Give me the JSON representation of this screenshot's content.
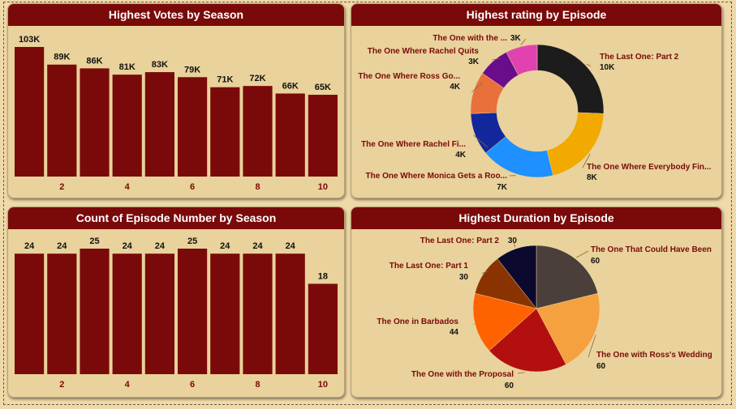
{
  "colors": {
    "bar": "#7a0a0a",
    "title_bg": "#7a0a0a",
    "card_bg": "#e9d29b",
    "page_bg": "#efd9a8",
    "label_dark": "#7a0a0a"
  },
  "chart_data": [
    {
      "id": "votes",
      "type": "bar",
      "title": "Highest Votes by Season",
      "categories": [
        1,
        2,
        3,
        4,
        5,
        6,
        7,
        8,
        9,
        10
      ],
      "tick_labels": [
        "",
        "2",
        "",
        "4",
        "",
        "6",
        "",
        "8",
        "",
        "10"
      ],
      "values": [
        103,
        89,
        86,
        81,
        83,
        79,
        71,
        72,
        66,
        65
      ],
      "value_labels": [
        "103K",
        "89K",
        "86K",
        "81K",
        "83K",
        "79K",
        "71K",
        "72K",
        "66K",
        "65K"
      ],
      "ylim": [
        0,
        103
      ]
    },
    {
      "id": "episodes",
      "type": "bar",
      "title": "Count of Episode Number by Season",
      "categories": [
        1,
        2,
        3,
        4,
        5,
        6,
        7,
        8,
        9,
        10
      ],
      "tick_labels": [
        "",
        "2",
        "",
        "4",
        "",
        "6",
        "",
        "8",
        "",
        "10"
      ],
      "values": [
        24,
        24,
        25,
        24,
        24,
        25,
        24,
        24,
        24,
        18
      ],
      "value_labels": [
        "24",
        "24",
        "25",
        "24",
        "24",
        "25",
        "24",
        "24",
        "24",
        "18"
      ],
      "ylim": [
        0,
        25
      ]
    },
    {
      "id": "rating",
      "type": "pie",
      "donut": true,
      "title": "Highest rating by Episode",
      "slices": [
        {
          "label": "The Last One: Part 2",
          "value": 10,
          "value_label": "10K",
          "color": "#1c1c1c"
        },
        {
          "label": "The One Where Everybody Fin...",
          "value": 8,
          "value_label": "8K",
          "color": "#f2a900"
        },
        {
          "label": "The One Where Monica Gets a Roo...",
          "value": 7,
          "value_label": "7K",
          "color": "#1e90ff"
        },
        {
          "label": "The One Where Rachel Fi...",
          "value": 4,
          "value_label": "4K",
          "color": "#13279c"
        },
        {
          "label": "The One Where Ross Go...",
          "value": 4,
          "value_label": "4K",
          "color": "#e8703a"
        },
        {
          "label": "The One Where Rachel Quits",
          "value": 3,
          "value_label": "3K",
          "color": "#6a0d8a"
        },
        {
          "label": "The One with the ...",
          "value": 3,
          "value_label": "3K",
          "color": "#e043b0"
        }
      ]
    },
    {
      "id": "duration",
      "type": "pie",
      "donut": false,
      "title": "Highest Duration by Episode",
      "slices": [
        {
          "label": "The One That Could Have Been",
          "value": 60,
          "value_label": "60",
          "color": "#4a3f3a"
        },
        {
          "label": "The One with Ross's Wedding",
          "value": 60,
          "value_label": "60",
          "color": "#f5a140"
        },
        {
          "label": "The One with the Proposal",
          "value": 60,
          "value_label": "60",
          "color": "#b30f0f"
        },
        {
          "label": "The One in Barbados",
          "value": 44,
          "value_label": "44",
          "color": "#ff6200"
        },
        {
          "label": "The Last One: Part 1",
          "value": 30,
          "value_label": "30",
          "color": "#8a3300"
        },
        {
          "label": "The Last One: Part 2",
          "value": 30,
          "value_label": "30",
          "color": "#0b0a2e"
        }
      ]
    }
  ]
}
